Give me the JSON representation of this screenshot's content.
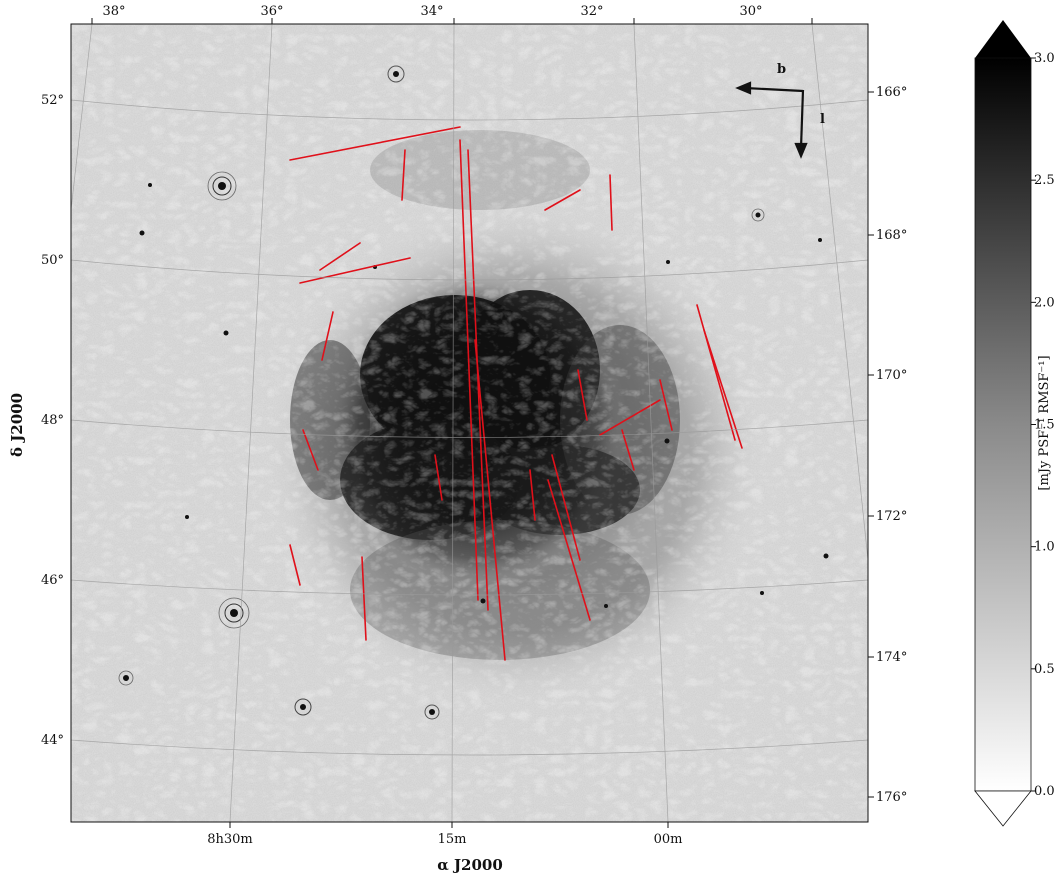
{
  "map": {
    "top_ticks": [
      "38°",
      "36°",
      "34°",
      "32°",
      "30°"
    ],
    "left_ticks": [
      "52°",
      "50°",
      "48°",
      "46°",
      "44°"
    ],
    "right_ticks": [
      "166°",
      "168°",
      "170°",
      "172°",
      "174°",
      "176°"
    ],
    "bottom_ticks": [
      "8h30m",
      "15m",
      "00m"
    ],
    "xlabel": "α J2000",
    "ylabel": "δ J2000",
    "compass": {
      "b_label": "b",
      "l_label": "l"
    }
  },
  "colorbar": {
    "ticks": [
      "3.0",
      "2.5",
      "2.0",
      "1.5",
      "1.0",
      "0.5",
      "0.0"
    ],
    "values": [
      3.0,
      2.5,
      2.0,
      1.5,
      1.0,
      0.5,
      0.0
    ],
    "label": "[mJy PSF⁻¹ RMSF⁻¹]",
    "range": [
      0.0,
      3.0
    ],
    "extend": "both",
    "colormap": "gray_r"
  },
  "colors": {
    "rfi_overlay": "#e0101a",
    "background_noise": "#d6d6d6"
  }
}
